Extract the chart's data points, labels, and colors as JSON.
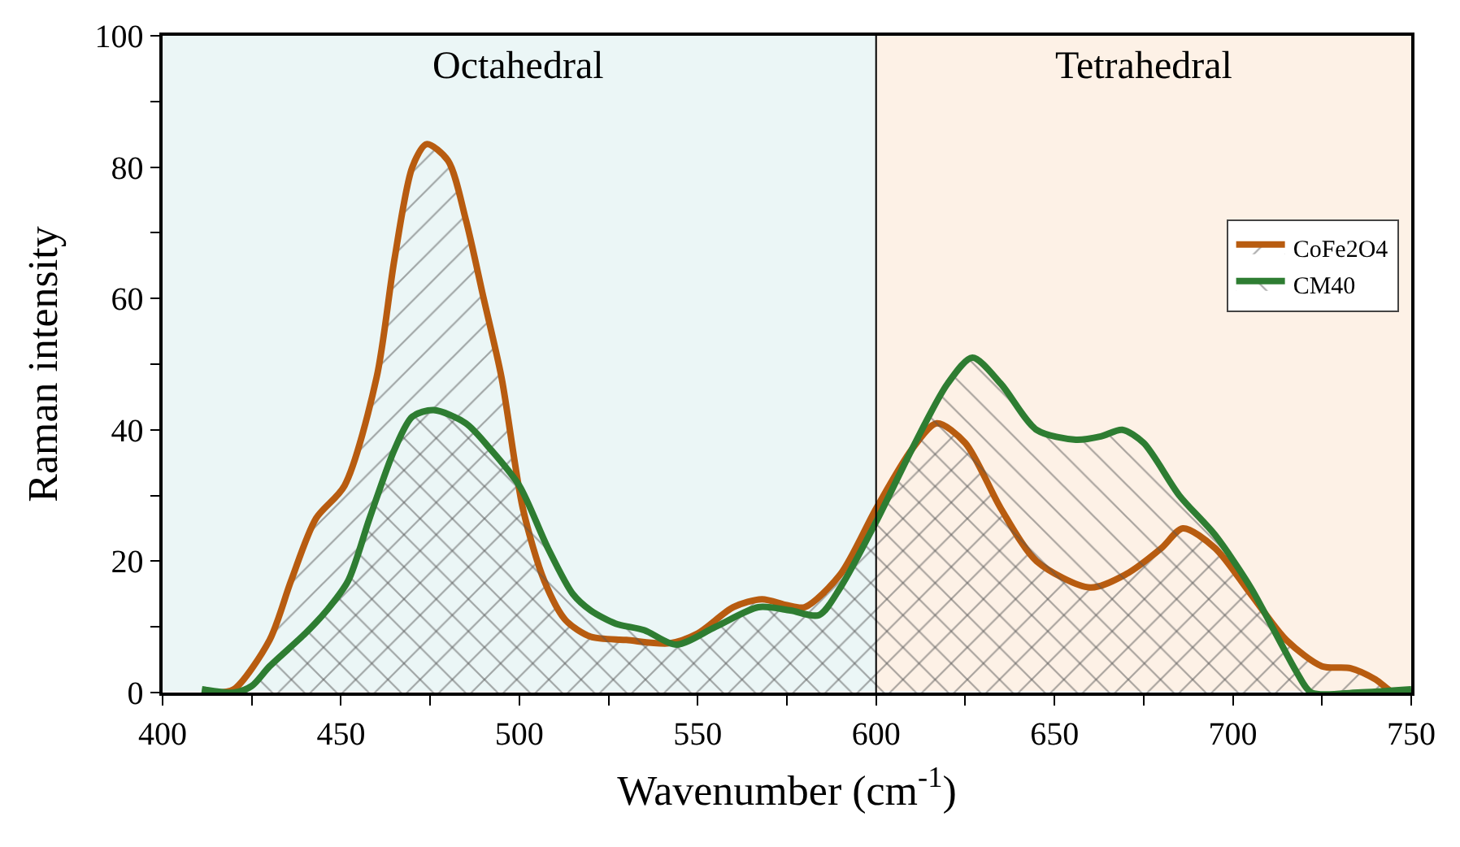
{
  "chart_data": {
    "type": "area",
    "xlabel": "Wavenumber (cm$^{-1}$)",
    "ylabel": "Raman intensity",
    "xlim": [
      400,
      750
    ],
    "xticks": [
      400,
      {
        "value": 425,
        "label": null
      },
      450,
      {
        "value": 475,
        "label": null
      },
      500,
      {
        "value": 525,
        "label": null
      },
      550,
      {
        "value": 575,
        "label": null
      },
      600,
      {
        "value": 625,
        "label": null
      },
      650,
      {
        "value": 675,
        "label": null
      },
      700,
      {
        "value": 725,
        "label": null
      },
      750
    ],
    "ylim": [
      0,
      100
    ],
    "yticks": [
      0,
      {
        "value": 10,
        "label": null
      },
      20,
      {
        "value": 30,
        "label": null
      },
      40,
      {
        "value": 50,
        "label": null
      },
      60,
      {
        "value": 70,
        "label": null
      },
      80,
      {
        "value": 90,
        "label": null
      },
      100
    ],
    "grid": false,
    "legend": "top right",
    "marker": "none",
    "line_style": "solid",
    "bands": [
      {
        "axis": "x",
        "from": 400,
        "to": 600,
        "label": "Octahedral",
        "color": "#ebf6f6"
      },
      {
        "axis": "x",
        "from": 600,
        "to": 750,
        "label": "Tetrahedral",
        "color": "#fdf1e6"
      }
    ],
    "ref_lines": [
      {
        "axis": "x",
        "value": 600,
        "color": "#000000"
      }
    ],
    "series": [
      {
        "name": "CoFe2O4",
        "color": "#b85c10",
        "x": [
          415,
          420,
          430,
          436,
          443,
          451,
          460,
          465,
          470,
          474,
          480,
          485,
          490,
          495,
          501,
          507,
          513,
          520,
          530,
          542,
          550,
          560,
          568,
          575,
          580,
          590,
          600,
          610,
          617,
          625,
          635,
          645,
          660,
          670,
          680,
          686,
          695,
          705,
          715,
          725,
          733,
          740,
          745,
          750
        ],
        "values": [
          0,
          0.5,
          8,
          17,
          26.5,
          31.5,
          48,
          66,
          80,
          83.5,
          81,
          72,
          60,
          48,
          28,
          17,
          11,
          8.5,
          8,
          7.5,
          9,
          13,
          14.2,
          13.3,
          13,
          18,
          28,
          37,
          41,
          38,
          28,
          20,
          16,
          18,
          22,
          25,
          22,
          15,
          8,
          4,
          3.7,
          2,
          0,
          0
        ]
      },
      {
        "name": "CM40",
        "color": "#2e7d32",
        "x": [
          411,
          420,
          425,
          430,
          440,
          446,
          452,
          458,
          465,
          470,
          476,
          485,
          492,
          500,
          508,
          515,
          520,
          527,
          535,
          544,
          555,
          567,
          576,
          584,
          590,
          600,
          610,
          620,
          627,
          635,
          645,
          656,
          663,
          669,
          675,
          685,
          695,
          705,
          712,
          718,
          722,
          735,
          750
        ],
        "values": [
          0.5,
          0,
          1,
          4,
          9,
          12.5,
          17,
          26.5,
          37,
          42,
          43,
          41,
          37,
          31.5,
          22,
          15,
          12.5,
          10.5,
          9.5,
          7.3,
          10,
          13,
          12.5,
          11.8,
          16,
          26,
          37,
          47,
          51,
          47,
          40,
          38.5,
          39,
          40,
          38,
          30,
          24,
          16,
          9,
          3,
          0,
          0,
          0.5
        ]
      }
    ]
  }
}
